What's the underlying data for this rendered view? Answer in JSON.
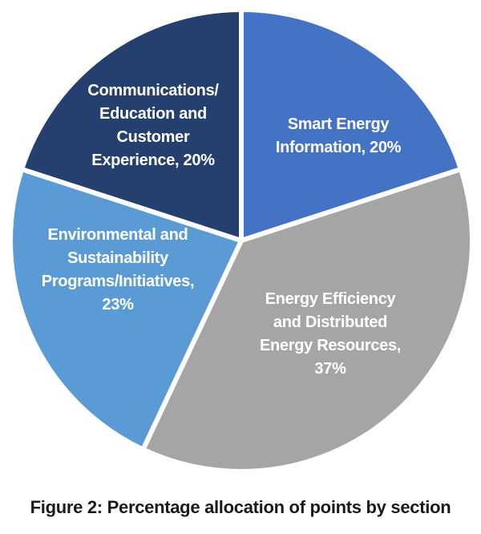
{
  "chart_data": {
    "type": "pie",
    "title": "Figure 2: Percentage allocation of points by section",
    "start_angle_deg": 0,
    "direction": "clockwise",
    "labels_position": "inside",
    "legend": "none",
    "label_text_color": "#FFFFFF",
    "separator_color": "#FFFFFF",
    "background_color": "#FFFFFF",
    "slices": [
      {
        "label": "Smart Energy Information",
        "value_pct": 20,
        "color": "#4472C4",
        "label_lines": [
          "Smart Energy",
          "Information, 20%"
        ]
      },
      {
        "label": "Energy Efficiency and Distributed Energy Resources",
        "value_pct": 37,
        "color": "#A5A5A5",
        "label_lines": [
          "Energy Efficiency",
          "and Distributed",
          "Energy Resources,",
          "37%"
        ]
      },
      {
        "label": "Environmental and Sustainability Programs/Initiatives",
        "value_pct": 23,
        "color": "#5B9BD5",
        "label_lines": [
          "Environmental and",
          "Sustainability",
          "Programs/Initiatives,",
          "23%"
        ]
      },
      {
        "label": "Communications/Education and Customer Experience",
        "value_pct": 20,
        "color": "#25406E",
        "label_lines": [
          "Communications/",
          "Education and",
          "Customer",
          "Experience, 20%"
        ]
      }
    ]
  }
}
